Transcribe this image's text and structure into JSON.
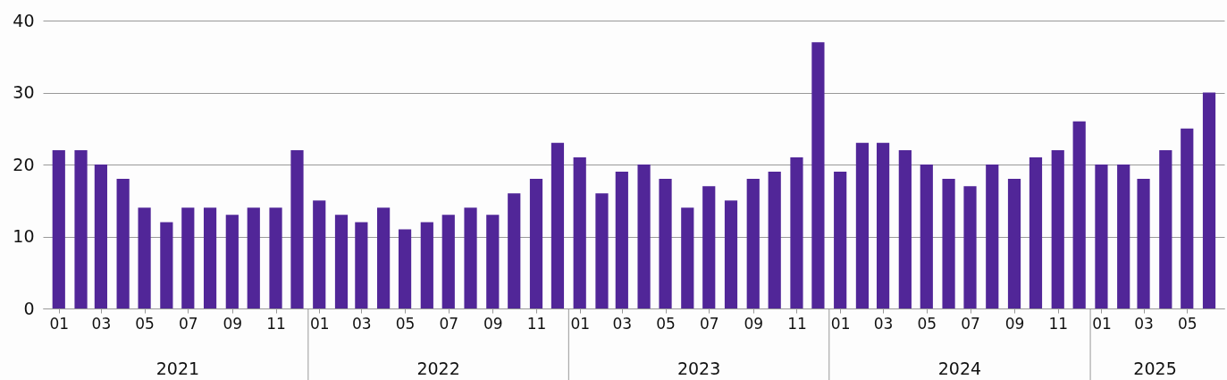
{
  "chart_data": {
    "type": "bar",
    "color": "#512698",
    "x": [
      "2021-01",
      "2021-02",
      "2021-03",
      "2021-04",
      "2021-05",
      "2021-06",
      "2021-07",
      "2021-08",
      "2021-09",
      "2021-10",
      "2021-11",
      "2021-12",
      "2022-01",
      "2022-02",
      "2022-03",
      "2022-04",
      "2022-05",
      "2022-06",
      "2022-07",
      "2022-08",
      "2022-09",
      "2022-10",
      "2022-11",
      "2022-12",
      "2023-01",
      "2023-02",
      "2023-03",
      "2023-04",
      "2023-05",
      "2023-06",
      "2023-07",
      "2023-08",
      "2023-09",
      "2023-10",
      "2023-11",
      "2023-12",
      "2024-01",
      "2024-02",
      "2024-03",
      "2024-04",
      "2024-05",
      "2024-06",
      "2024-07",
      "2024-08",
      "2024-09",
      "2024-10",
      "2024-11",
      "2024-12",
      "2025-01",
      "2025-02",
      "2025-03",
      "2025-04",
      "2025-05",
      "2025-06"
    ],
    "values": [
      22,
      22,
      20,
      18,
      14,
      12,
      14,
      14,
      13,
      14,
      14,
      22,
      15,
      13,
      12,
      14,
      11,
      12,
      13,
      14,
      13,
      16,
      18,
      23,
      21,
      16,
      19,
      20,
      18,
      14,
      17,
      15,
      18,
      19,
      21,
      37,
      19,
      23,
      23,
      22,
      20,
      18,
      17,
      20,
      18,
      21,
      22,
      26,
      20,
      20,
      18,
      22,
      25,
      30
    ],
    "xlim": [
      "2020-12-16",
      "2025-06-16"
    ],
    "xticks": [
      {
        "value": "2021-01",
        "label": "01"
      },
      {
        "value": "2021-03",
        "label": "03"
      },
      {
        "value": "2021-05",
        "label": "05"
      },
      {
        "value": "2021-07",
        "label": "07"
      },
      {
        "value": "2021-09",
        "label": "09"
      },
      {
        "value": "2021-11",
        "label": "11"
      },
      {
        "value": "2022-01",
        "label": "01"
      },
      {
        "value": "2022-03",
        "label": "03"
      },
      {
        "value": "2022-05",
        "label": "05"
      },
      {
        "value": "2022-07",
        "label": "07"
      },
      {
        "value": "2022-09",
        "label": "09"
      },
      {
        "value": "2022-11",
        "label": "11"
      },
      {
        "value": "2023-01",
        "label": "01"
      },
      {
        "value": "2023-03",
        "label": "03"
      },
      {
        "value": "2023-05",
        "label": "05"
      },
      {
        "value": "2023-07",
        "label": "07"
      },
      {
        "value": "2023-09",
        "label": "09"
      },
      {
        "value": "2023-11",
        "label": "11"
      },
      {
        "value": "2024-01",
        "label": "01"
      },
      {
        "value": "2024-03",
        "label": "03"
      },
      {
        "value": "2024-05",
        "label": "05"
      },
      {
        "value": "2024-07",
        "label": "07"
      },
      {
        "value": "2024-09",
        "label": "09"
      },
      {
        "value": "2024-11",
        "label": "11"
      },
      {
        "value": "2025-01",
        "label": "01"
      },
      {
        "value": "2025-03",
        "label": "03"
      },
      {
        "value": "2025-05",
        "label": "05"
      }
    ],
    "ylim": [
      0,
      40
    ],
    "yticks": [
      0,
      10,
      20,
      30,
      40
    ],
    "grid": "y",
    "annotations": [
      "2021",
      "2022",
      "2023",
      "2024",
      "2025"
    ]
  }
}
